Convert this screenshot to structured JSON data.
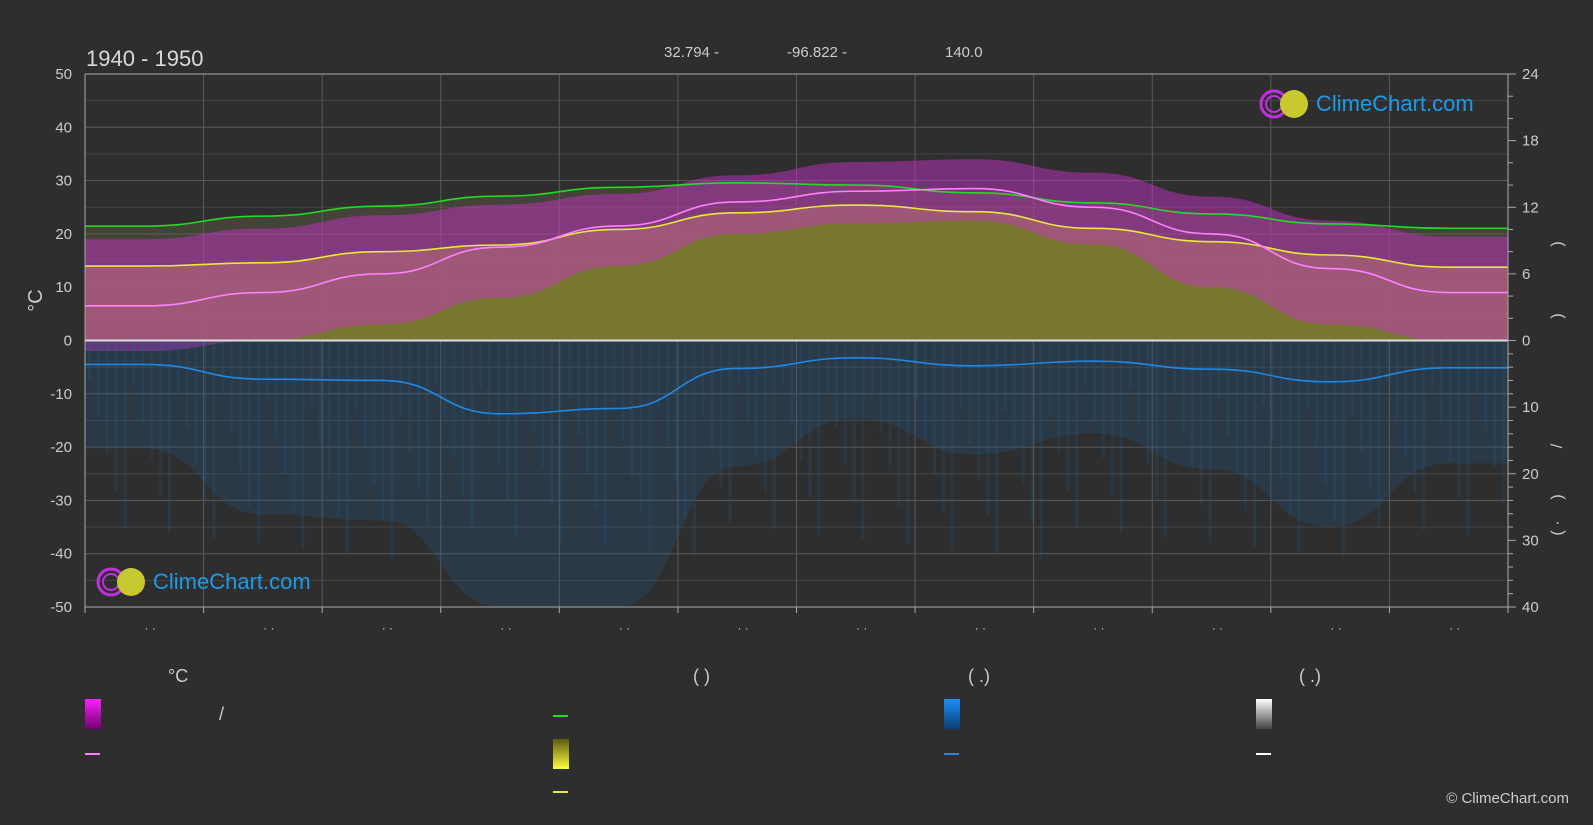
{
  "header": {
    "period": "1940 - 1950",
    "latitude": "32.794 -",
    "longitude": "-96.822 -",
    "elevation": "140.0"
  },
  "brand": {
    "name": "ClimeChart.com",
    "copyright": "© ClimeChart.com"
  },
  "colors": {
    "background": "#2e2e2e",
    "daylight": "#22dd22",
    "sunshine": "#e8e83a",
    "temp_range": "#e020e0",
    "temp_mean": "#ff80ff",
    "rain": "#1e88e5",
    "snow": "#ffffff",
    "brand": "#1e9be8"
  },
  "chart_data": {
    "type": "area",
    "left_axis": {
      "label": "°C",
      "range": [
        -50,
        50
      ],
      "ticks": [
        "50",
        "40",
        "30",
        "20",
        "10",
        "0",
        "-10",
        "-20",
        "-30",
        "-40",
        "-50"
      ]
    },
    "right_axis_top": {
      "range": [
        0,
        24
      ],
      "ticks": [
        "24",
        "18",
        "12",
        "6",
        "0"
      ]
    },
    "right_axis_bottom": {
      "range": [
        0,
        40
      ],
      "ticks": [
        "0",
        "10",
        "20",
        "30",
        "40"
      ]
    },
    "right_axis_glyphs": [
      ")",
      ")",
      "/",
      ")",
      "(   ·"
    ],
    "month_labels": [
      "· ·",
      "· ·",
      "· ·",
      "· ·",
      "· ·",
      "· ·",
      "· ·",
      "· ·",
      "· ·",
      "· ·",
      "· ·",
      "· ·"
    ],
    "grid": true,
    "x": [
      0.5,
      1.5,
      2.5,
      3.5,
      4.5,
      5.5,
      6.5,
      7.5,
      8.5,
      9.5,
      10.5,
      11.5
    ],
    "series": [
      {
        "key": "daylight",
        "unit": "h",
        "axis": "right_top",
        "values": [
          10.3,
          11.2,
          12.1,
          13.0,
          13.8,
          14.2,
          14.0,
          13.3,
          12.4,
          11.4,
          10.5,
          10.1
        ]
      },
      {
        "key": "sunshine",
        "unit": "h",
        "axis": "right_top",
        "values": [
          6.7,
          7.0,
          8.0,
          8.6,
          10.0,
          11.5,
          12.2,
          11.6,
          10.1,
          8.9,
          7.7,
          6.6
        ]
      },
      {
        "key": "temp_mean",
        "unit": "°C",
        "axis": "left",
        "values": [
          6.5,
          9.0,
          12.5,
          17.5,
          21.5,
          26.0,
          28.0,
          28.5,
          25.0,
          20.0,
          13.5,
          9.0
        ]
      },
      {
        "key": "temp_max_band",
        "unit": "°C",
        "axis": "left",
        "values": [
          19.0,
          21.0,
          23.5,
          25.5,
          27.5,
          31.0,
          33.5,
          34.0,
          31.5,
          27.0,
          22.5,
          19.5
        ]
      },
      {
        "key": "temp_min_band",
        "unit": "°C",
        "axis": "left",
        "values": [
          -2.0,
          0.0,
          3.0,
          8.0,
          14.0,
          20.0,
          22.0,
          22.5,
          18.0,
          10.0,
          3.0,
          0.0
        ]
      },
      {
        "key": "rain_mean",
        "unit": "mm",
        "axis": "right_bottom",
        "values": [
          3.6,
          5.8,
          6.0,
          11.0,
          10.2,
          4.2,
          2.6,
          3.8,
          3.1,
          4.3,
          6.2,
          4.1
        ]
      }
    ]
  },
  "legend": {
    "headers": [
      "°C",
      "(           )",
      "(    .)",
      "(    .)"
    ],
    "slash": "/"
  }
}
